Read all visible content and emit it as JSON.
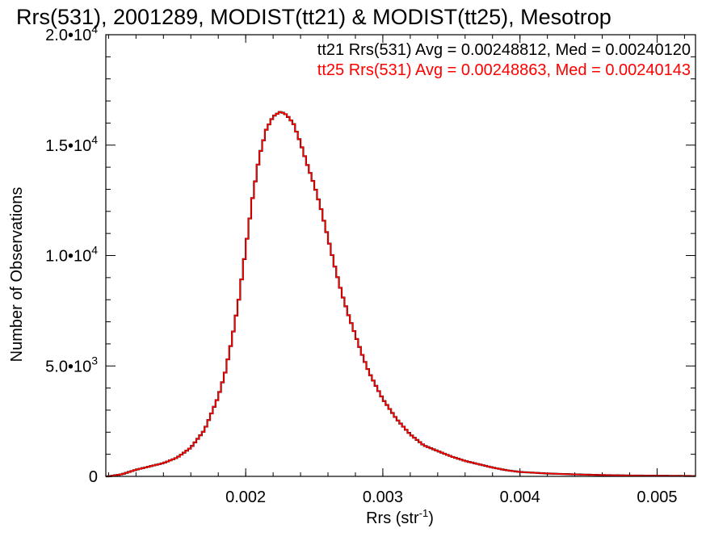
{
  "chart_data": {
    "type": "line",
    "title": "Rrs(531), 2001289, MODIST(tt21) & MODIST(tt25), Mesotrop",
    "xlabel": "Rrs (str",
    "xlabel_sup": "-1",
    "xlabel_close": ")",
    "ylabel": "Number of Observations",
    "xlim": [
      0.00098,
      0.00528
    ],
    "ylim": [
      0,
      20000
    ],
    "xticks": [
      {
        "value": 0.002,
        "label": "0.002"
      },
      {
        "value": 0.003,
        "label": "0.003"
      },
      {
        "value": 0.004,
        "label": "0.004"
      },
      {
        "value": 0.005,
        "label": "0.005"
      }
    ],
    "yticks": [
      {
        "value": 0,
        "mant": "0",
        "exp": ""
      },
      {
        "value": 5000,
        "mant": "5.0•10",
        "exp": "3"
      },
      {
        "value": 10000,
        "mant": "1.0•10",
        "exp": "4"
      },
      {
        "value": 15000,
        "mant": "1.5•10",
        "exp": "4"
      },
      {
        "value": 20000,
        "mant": "2.0•10",
        "exp": "4"
      }
    ],
    "annotations": [
      {
        "text": "tt21 Rrs(531) Avg = 0.00248812, Med = 0.00240120",
        "color": "#000000"
      },
      {
        "text": "tt25 Rrs(531) Avg = 0.00248863, Med = 0.00240143",
        "color": "#ff0000"
      }
    ],
    "x": [
      0.001,
      0.0011,
      0.0012,
      0.0013,
      0.0014,
      0.0015,
      0.0016,
      0.0017,
      0.0018,
      0.00185,
      0.0019,
      0.00195,
      0.002,
      0.00205,
      0.0021,
      0.00215,
      0.0022,
      0.00225,
      0.00228,
      0.0023,
      0.00232,
      0.00235,
      0.0024,
      0.00245,
      0.0025,
      0.00255,
      0.0026,
      0.00265,
      0.0027,
      0.00275,
      0.0028,
      0.00285,
      0.0029,
      0.003,
      0.0031,
      0.0032,
      0.0033,
      0.0034,
      0.0035,
      0.0036,
      0.0037,
      0.0038,
      0.0039,
      0.004,
      0.0042,
      0.0044,
      0.0046,
      0.0048,
      0.005,
      0.0052,
      0.00528
    ],
    "series": [
      {
        "color": "#000000",
        "values": [
          0,
          100,
          300,
          450,
          600,
          850,
          1300,
          2100,
          3600,
          4700,
          6200,
          8000,
          10300,
          12600,
          14500,
          15700,
          16300,
          16500,
          16450,
          16350,
          16200,
          15950,
          15100,
          14100,
          13200,
          12100,
          10800,
          9500,
          8300,
          7300,
          6400,
          5500,
          4700,
          3500,
          2600,
          1900,
          1400,
          1150,
          900,
          700,
          550,
          400,
          280,
          200,
          130,
          90,
          60,
          40,
          30,
          20,
          15
        ]
      },
      {
        "color": "#ff0000",
        "values": [
          0,
          100,
          300,
          450,
          600,
          850,
          1300,
          2100,
          3600,
          4700,
          6200,
          8000,
          10300,
          12600,
          14500,
          15700,
          16300,
          16500,
          16450,
          16350,
          16200,
          15950,
          15100,
          14100,
          13200,
          12100,
          10800,
          9500,
          8300,
          7300,
          6400,
          5500,
          4700,
          3500,
          2600,
          1900,
          1400,
          1150,
          900,
          700,
          550,
          400,
          280,
          200,
          130,
          90,
          60,
          40,
          30,
          20,
          15
        ]
      }
    ]
  }
}
